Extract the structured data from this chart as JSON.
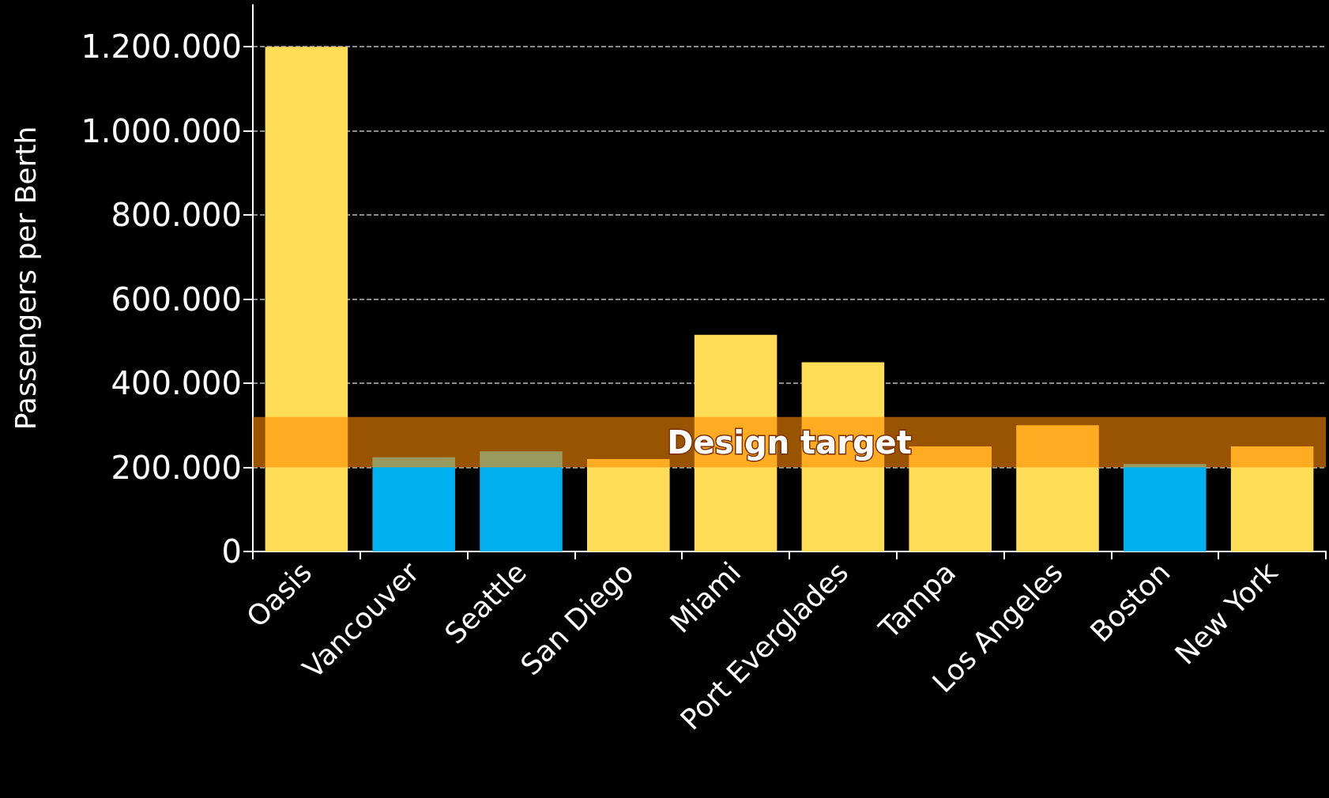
{
  "chart_data": {
    "type": "bar",
    "ylabel": "Passengers per Berth",
    "categories": [
      "Oasis",
      "Vancouver",
      "Seattle",
      "San Diego",
      "Miami",
      "Port Everglades",
      "Tampa",
      "Los Angeles",
      "Boston",
      "New York"
    ],
    "values": [
      1200000,
      224000,
      238000,
      220000,
      515000,
      450000,
      250000,
      300000,
      208000,
      250000
    ],
    "colors": [
      "#ffdd57",
      "#00b0f0",
      "#00b0f0",
      "#ffdd57",
      "#ffdd57",
      "#ffdd57",
      "#ffdd57",
      "#ffdd57",
      "#00b0f0",
      "#ffdd57"
    ],
    "ylim": [
      0,
      1300000
    ],
    "yticks": [
      {
        "value": 0,
        "label": "0"
      },
      {
        "value": 200000,
        "label": "200.000"
      },
      {
        "value": 400000,
        "label": "400.000"
      },
      {
        "value": 600000,
        "label": "600.000"
      },
      {
        "value": 800000,
        "label": "800.000"
      },
      {
        "value": 1000000,
        "label": "1.000.000"
      },
      {
        "value": 1200000,
        "label": "1.200.000"
      }
    ],
    "bands": [
      {
        "axis": "y",
        "from": 200000,
        "to": 320000,
        "label": "Design target",
        "color": "#ff8c00"
      }
    ],
    "grid": "y"
  }
}
